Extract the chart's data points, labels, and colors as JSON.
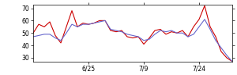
{
  "red_y": [
    50,
    57,
    55,
    59,
    48,
    42,
    55,
    68,
    55,
    58,
    57,
    58,
    60,
    60,
    52,
    51,
    52,
    47,
    46,
    47,
    41,
    46,
    52,
    53,
    49,
    51,
    50,
    52,
    47,
    55,
    61,
    72,
    55,
    47,
    35,
    30,
    27
  ],
  "blue_y": [
    47,
    48,
    49,
    49,
    46,
    44,
    50,
    57,
    55,
    57,
    57,
    58,
    59,
    60,
    53,
    52,
    51,
    49,
    48,
    47,
    44,
    45,
    49,
    52,
    51,
    52,
    50,
    50,
    47,
    49,
    55,
    61,
    53,
    44,
    38,
    32,
    27
  ],
  "xtick_positions": [
    10,
    20,
    30
  ],
  "xtick_labels": [
    "6/25",
    "7/9",
    "7/24"
  ],
  "ytick_positions": [
    30,
    40,
    50,
    60,
    70
  ],
  "ytick_labels": [
    "30",
    "40",
    "50",
    "60",
    "70"
  ],
  "ylim": [
    27,
    73
  ],
  "xlim": [
    0,
    36
  ],
  "red_color": "#cc0000",
  "blue_color": "#6666cc",
  "bg_color": "#ffffff",
  "linewidth": 0.8
}
